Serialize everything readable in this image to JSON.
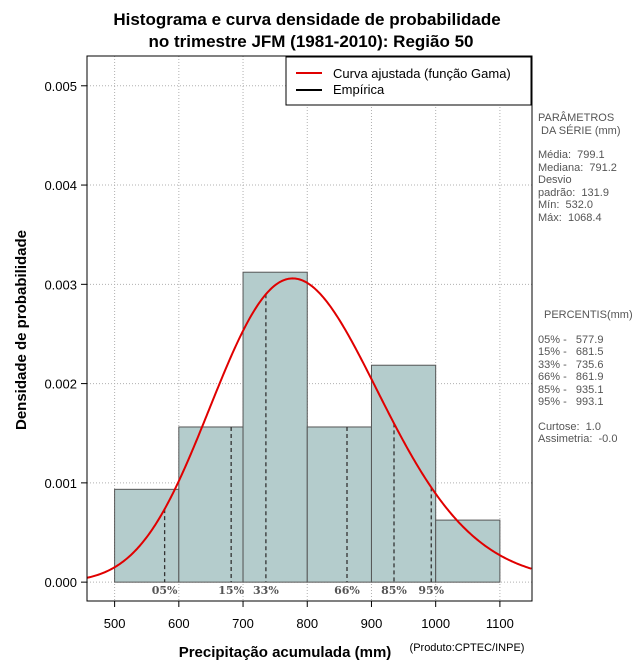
{
  "chart_data": {
    "type": "bar",
    "title_lines": [
      "Histograma e curva densidade de probabilidade",
      "no trimestre JFM (1981-2010): Região 50"
    ],
    "xlabel": "Precipitação acumulada (mm)",
    "ylabel": "Densidade de probabilidade",
    "credit": "(Produto:CPTEC/INPE)",
    "xlim": [
      457,
      1150
    ],
    "ylim": [
      -0.00019,
      0.0053
    ],
    "x_ticks": [
      500,
      600,
      700,
      800,
      900,
      1000,
      1100
    ],
    "y_ticks": [
      0.0,
      0.001,
      0.002,
      0.003,
      0.004,
      0.005
    ],
    "y_tick_labels": [
      "0.000",
      "0.001",
      "0.002",
      "0.003",
      "0.004",
      "0.005"
    ],
    "bins": [
      {
        "start": 500,
        "end": 600,
        "density": 0.000935
      },
      {
        "start": 600,
        "end": 700,
        "density": 0.001563
      },
      {
        "start": 700,
        "end": 800,
        "density": 0.003122
      },
      {
        "start": 800,
        "end": 900,
        "density": 0.001563
      },
      {
        "start": 900,
        "end": 1000,
        "density": 0.002185
      },
      {
        "start": 1000,
        "end": 1100,
        "density": 0.000625
      }
    ],
    "gamma_fit": {
      "mean": 799.1,
      "sd": 131.9
    },
    "percentiles": [
      {
        "label": "05%",
        "value": 577.9
      },
      {
        "label": "15%",
        "value": 681.5
      },
      {
        "label": "33%",
        "value": 735.6
      },
      {
        "label": "66%",
        "value": 861.9
      },
      {
        "label": "85%",
        "value": 935.1
      },
      {
        "label": "95%",
        "value": 993.1
      }
    ],
    "legend": [
      {
        "label": "Curva ajustada (função Gama)",
        "color": "#e00000"
      },
      {
        "label": "Empírica",
        "color": "#000000"
      }
    ],
    "legend_position": "top-right",
    "grid": true,
    "colors": {
      "bar_fill": "#b4cccc",
      "bar_edge": "#555555",
      "curve": "#e00000",
      "grid": "#b0b0b0",
      "percentile_line": "#333333"
    }
  },
  "side_panel": {
    "params_title_1": "PARÂMETROS",
    "params_title_2": " DA SÉRIE (mm)",
    "media": "Média:  799.1",
    "mediana": "Mediana:  791.2",
    "desvio_1": "Desvio",
    "desvio_2": "padrão:  131.9",
    "min": "Mín:  532.0",
    "max": "Máx:  1068.4",
    "percentis_title": "PERCENTIS(mm)",
    "p05": "05% -   577.9",
    "p15": "15% -   681.5",
    "p33": "33% -   735.6",
    "p66": "66% -   861.9",
    "p85": "85% -   935.1",
    "p95": "95% -   993.1",
    "curtose": "Curtose:  1.0",
    "assimetria": "Assimetria:  -0.0"
  }
}
